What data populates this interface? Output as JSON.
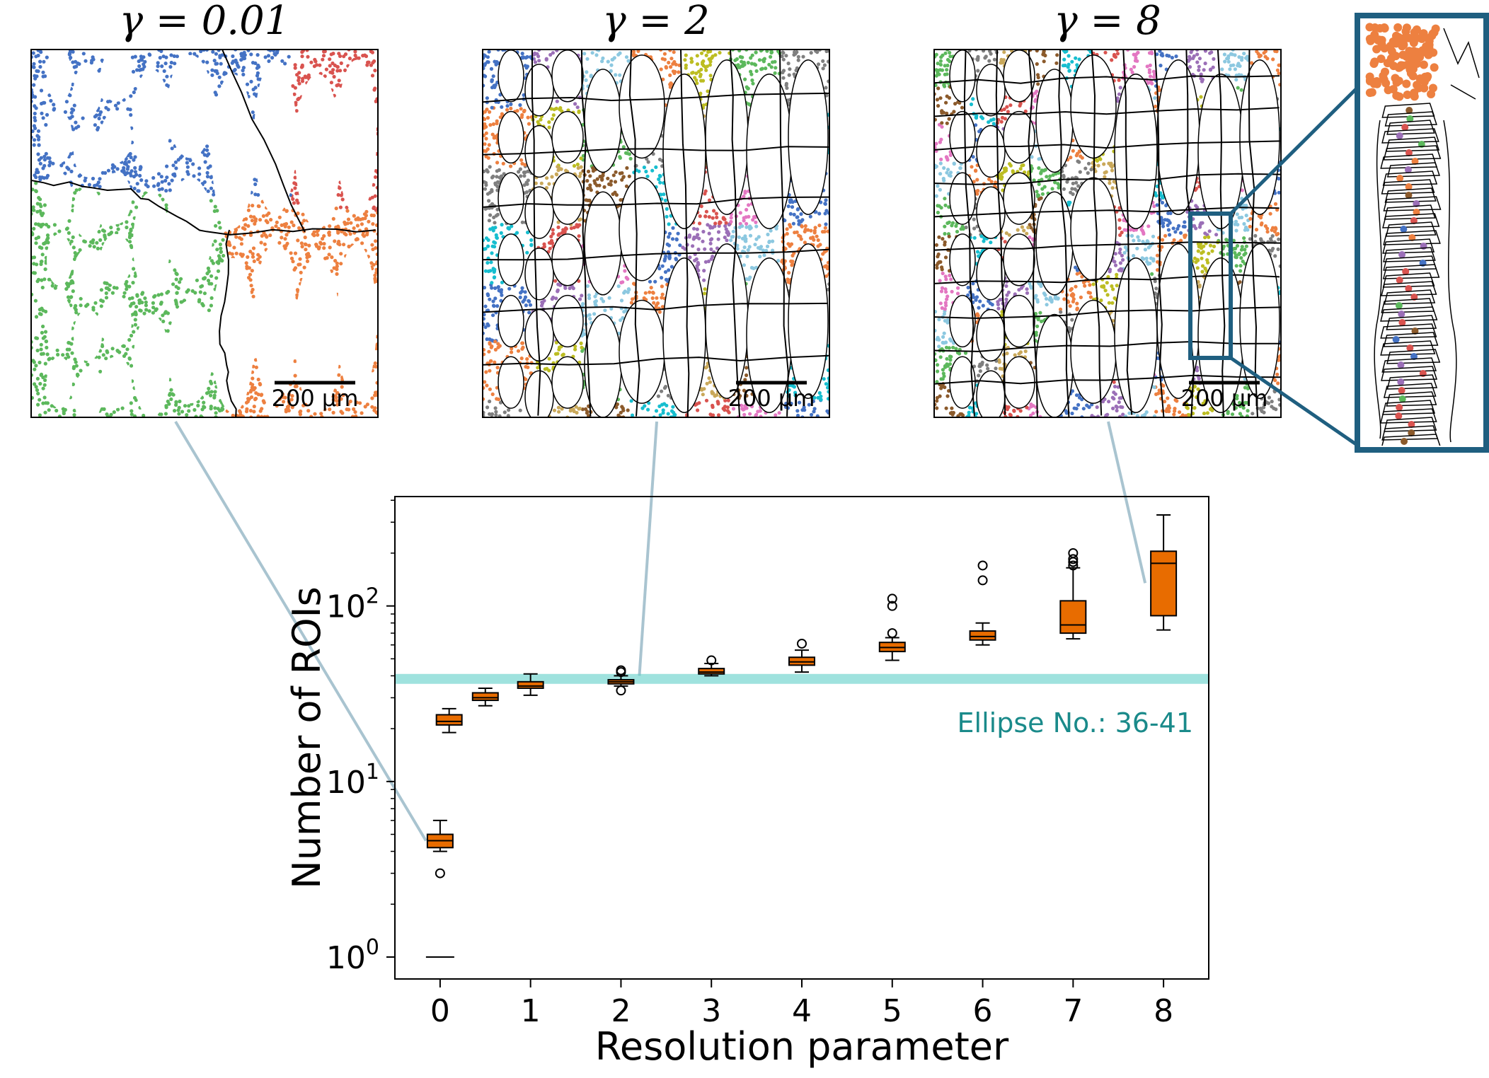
{
  "panels": [
    {
      "title": "γ = 0.01",
      "scale_bar": "200 μm",
      "links_to_category": "0"
    },
    {
      "title": "γ = 2",
      "scale_bar": "200 μm",
      "links_to_category": "2"
    },
    {
      "title": "γ = 8",
      "scale_bar": "200 μm",
      "links_to_category": "8"
    }
  ],
  "segment_colors": [
    "#4472c4",
    "#5cb85c",
    "#d9534f",
    "#ed8040",
    "#8b5a2b",
    "#9b6fb7",
    "#7f7f7f",
    "#e377c2",
    "#bcbd22",
    "#17becf",
    "#8cc8e0",
    "#c9a85a"
  ],
  "colors": {
    "box_fill": "#e86c00",
    "band": "#5fcfc8",
    "band_text": "#1a8a8a",
    "connector": "#a9c4d0",
    "inset_frame": "#1f5f80"
  },
  "chart_data": {
    "type": "box",
    "xlabel": "Resolution parameter",
    "ylabel": "Number of ROIs",
    "yscale": "log",
    "ylim": [
      0.75,
      420
    ],
    "ytick_values": [
      1,
      10,
      100
    ],
    "yticks": [
      {
        "base": "10",
        "exp": "0"
      },
      {
        "base": "10",
        "exp": "1"
      },
      {
        "base": "10",
        "exp": "2"
      }
    ],
    "xlim": [
      -0.5,
      8.5
    ],
    "xticks": [
      "0",
      "1",
      "2",
      "3",
      "4",
      "5",
      "6",
      "7",
      "8"
    ],
    "boxes": [
      {
        "x": 0.0,
        "q1": 1,
        "median": 1,
        "q3": 1,
        "whislo": 1,
        "whishi": 1,
        "fliers": []
      },
      {
        "x": 0.0,
        "q1": 4.2,
        "median": 4.6,
        "q3": 5.0,
        "whislo": 4.0,
        "whishi": 6.0,
        "fliers": [
          3.0
        ]
      },
      {
        "x": 0.1,
        "q1": 21,
        "median": 22,
        "q3": 24,
        "whislo": 19,
        "whishi": 26,
        "fliers": []
      },
      {
        "x": 0.5,
        "q1": 29,
        "median": 30,
        "q3": 32,
        "whislo": 27,
        "whishi": 34,
        "fliers": []
      },
      {
        "x": 1.0,
        "q1": 34,
        "median": 35,
        "q3": 37,
        "whislo": 31,
        "whishi": 41,
        "fliers": []
      },
      {
        "x": 2.0,
        "q1": 36,
        "median": 37,
        "q3": 38,
        "whislo": 35,
        "whishi": 40,
        "fliers": [
          33,
          42,
          43
        ]
      },
      {
        "x": 3.0,
        "q1": 41,
        "median": 42,
        "q3": 44,
        "whislo": 40,
        "whishi": 47,
        "fliers": [
          49
        ]
      },
      {
        "x": 4.0,
        "q1": 46,
        "median": 48,
        "q3": 51,
        "whislo": 42,
        "whishi": 56,
        "fliers": [
          61
        ]
      },
      {
        "x": 5.0,
        "q1": 55,
        "median": 58,
        "q3": 62,
        "whislo": 49,
        "whishi": 66,
        "fliers": [
          70,
          100,
          110
        ]
      },
      {
        "x": 6.0,
        "q1": 64,
        "median": 67,
        "q3": 72,
        "whislo": 60,
        "whishi": 80,
        "fliers": [
          140,
          170
        ]
      },
      {
        "x": 7.0,
        "q1": 70,
        "median": 78,
        "q3": 107,
        "whislo": 65,
        "whishi": 165,
        "fliers": [
          170,
          178,
          185,
          200
        ]
      },
      {
        "x": 8.0,
        "q1": 88,
        "median": 175,
        "q3": 205,
        "whislo": 73,
        "whishi": 330,
        "fliers": []
      }
    ],
    "band": {
      "low": 36,
      "high": 41,
      "label": "Ellipse No.: 36-41"
    }
  }
}
